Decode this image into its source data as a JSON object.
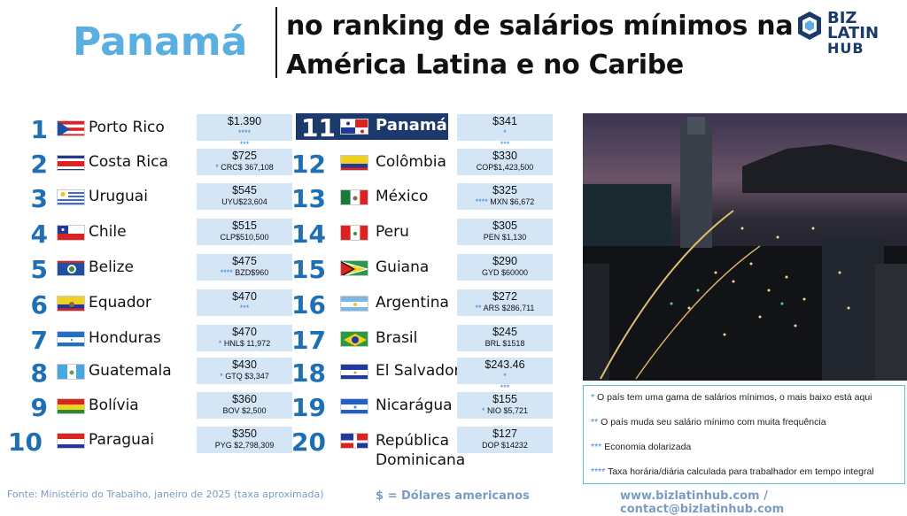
{
  "header": {
    "country": "Panamá",
    "title_line1": "no ranking de salários mínimos na",
    "title_line2": "América Latina e no Caribe"
  },
  "logo": {
    "line1": "BIZ LATIN",
    "line2": "HUB"
  },
  "left": [
    {
      "rank": "1",
      "name": "Porto Rico",
      "value": "$1.390",
      "sub": "",
      "stars": "****",
      "stars2": "***"
    },
    {
      "rank": "2",
      "name": "Costa Rica",
      "value": "$725",
      "sub": "CRC$ 367,108",
      "stars": "*",
      "stars2": ""
    },
    {
      "rank": "3",
      "name": "Uruguai",
      "value": "$545",
      "sub": "UYU$23,604",
      "stars": "",
      "stars2": ""
    },
    {
      "rank": "4",
      "name": "Chile",
      "value": "$515",
      "sub": "CLP$510,500",
      "stars": "",
      "stars2": ""
    },
    {
      "rank": "5",
      "name": "Belize",
      "value": "$475",
      "sub": "BZD$960",
      "stars": "****",
      "stars2": ""
    },
    {
      "rank": "6",
      "name": "Equador",
      "value": "$470",
      "sub": "",
      "stars": "***",
      "stars2": ""
    },
    {
      "rank": "7",
      "name": "Honduras",
      "value": "$470",
      "sub": "HNL$ 11,972",
      "stars": "*",
      "stars2": ""
    },
    {
      "rank": "8",
      "name": "Guatemala",
      "value": "$430",
      "sub": "GTQ $3,347",
      "stars": "*",
      "stars2": ""
    },
    {
      "rank": "9",
      "name": "Bolívia",
      "value": "$360",
      "sub": "BOV $2,500",
      "stars": "",
      "stars2": ""
    },
    {
      "rank": "10",
      "name": "Paraguai",
      "value": "$350",
      "sub": "PYG $2,798,309",
      "stars": "",
      "stars2": ""
    }
  ],
  "right": [
    {
      "rank": "11",
      "name": "Panamá",
      "value": "$341",
      "sub": "",
      "stars": "*",
      "stars2": "***"
    },
    {
      "rank": "12",
      "name": "Colômbia",
      "value": "$330",
      "sub": "COP$1,423,500",
      "stars": "",
      "stars2": ""
    },
    {
      "rank": "13",
      "name": "México",
      "value": "$325",
      "sub": "MXN $6,672",
      "stars": "****",
      "stars2": ""
    },
    {
      "rank": "14",
      "name": "Peru",
      "value": "$305",
      "sub": "PEN $1,130",
      "stars": "",
      "stars2": ""
    },
    {
      "rank": "15",
      "name": "Guiana",
      "value": "$290",
      "sub": "GYD $60000",
      "stars": "",
      "stars2": ""
    },
    {
      "rank": "16",
      "name": "Argentina",
      "value": "$272",
      "sub": "ARS $286,711",
      "stars": "**",
      "stars2": ""
    },
    {
      "rank": "17",
      "name": "Brasil",
      "value": "$245",
      "sub": "BRL $1518",
      "stars": "",
      "stars2": ""
    },
    {
      "rank": "18",
      "name": "El Salvador",
      "value": "$243.46",
      "sub": "",
      "stars": "*",
      "stars2": "***"
    },
    {
      "rank": "19",
      "name": "Nicarágua",
      "value": "$155",
      "sub": "NIO $5,721",
      "stars": "*",
      "stars2": ""
    },
    {
      "rank": "20",
      "name": "República\nDominicana",
      "value": "$127",
      "sub": "DOP $14232",
      "stars": "",
      "stars2": ""
    }
  ],
  "notes": [
    {
      "mark": "*",
      "text": "O país tem uma gama de salários mínimos, o mais baixo está aqui"
    },
    {
      "mark": "**",
      "text": "O país muda seu salário mínimo com muita frequência"
    },
    {
      "mark": "***",
      "text": "Economia dolarizada"
    },
    {
      "mark": "****",
      "text": "Taxa horária/diária calculada para trabalhador em tempo integral"
    }
  ],
  "footer": {
    "source": "Fonte: Ministério do Trabalho, janeiro de 2025 (taxa aproximada)",
    "usd": "$ = Dólares americanos",
    "web": "www.bizlatinhub.com / contact@bizlatinhub.com"
  },
  "colors": {
    "accent": "#1f6fb4",
    "light_accent": "#5aaee0",
    "cell_bg": "#d4e5f6",
    "highlight": "#1b3a6b"
  }
}
